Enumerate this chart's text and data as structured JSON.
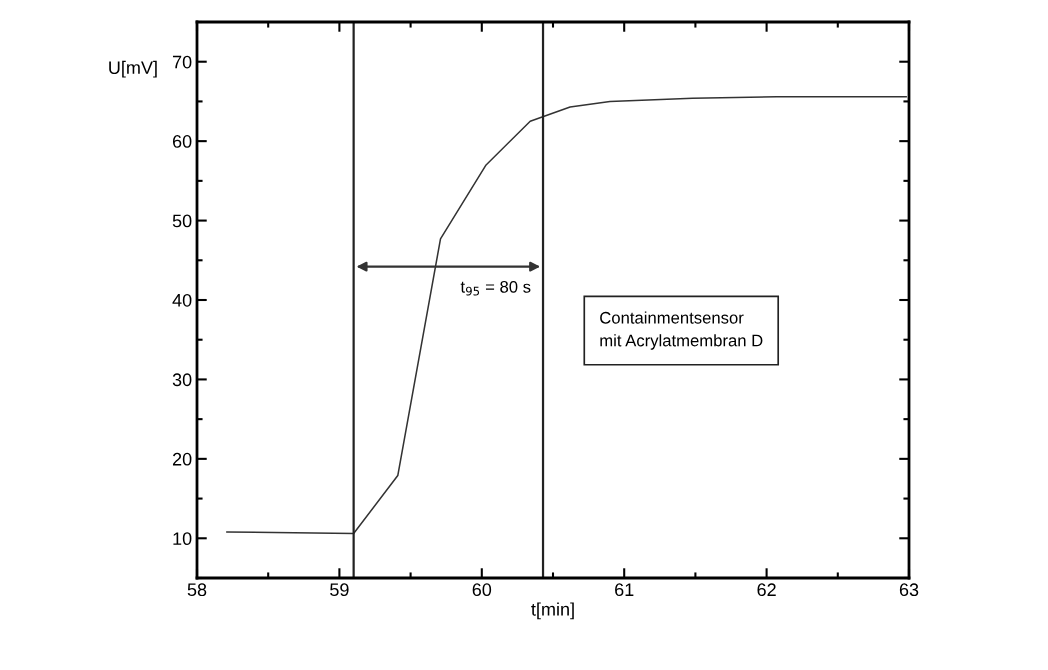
{
  "chart_data": {
    "type": "line",
    "xlabel": "t[min]",
    "ylabel": "U[mV]",
    "x": [
      58.21,
      59.1,
      59.41,
      59.71,
      60.03,
      60.34,
      60.62,
      60.9,
      61.48,
      62.07,
      62.98
    ],
    "series": [
      {
        "color": "#333333",
        "values": [
          10.8,
          10.6,
          17.9,
          47.7,
          57.0,
          62.5,
          64.3,
          65.0,
          65.4,
          65.6,
          65.6
        ]
      }
    ],
    "xlim": [
      58,
      63
    ],
    "xticks": [
      58,
      59,
      60,
      61,
      62,
      63
    ],
    "ylim": [
      5,
      75
    ],
    "yticks": [
      10,
      20,
      30,
      40,
      50,
      60,
      70
    ],
    "ref_lines": [
      {
        "axis": "x",
        "value": 59.1,
        "color": "#222222"
      },
      {
        "axis": "x",
        "value": 60.43,
        "color": "#222222"
      }
    ],
    "annotations": [
      "t$_{95}$ = 80 s",
      "Containmentsensor\nmit Acrylatmembran D"
    ],
    "grid": false,
    "legend": false,
    "marker": "none",
    "line_style": "solid"
  }
}
